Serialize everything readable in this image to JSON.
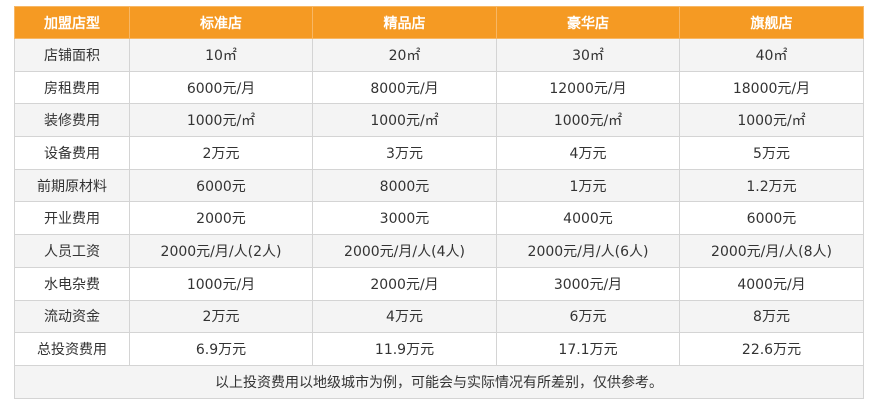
{
  "table": {
    "headers": [
      "加盟店型",
      "标准店",
      "精品店",
      "豪华店",
      "旗舰店"
    ],
    "rows": [
      [
        "店铺面积",
        "10㎡",
        "20㎡",
        "30㎡",
        "40㎡"
      ],
      [
        "房租费用",
        "6000元/月",
        "8000元/月",
        "12000元/月",
        "18000元/月"
      ],
      [
        "装修费用",
        "1000元/㎡",
        "1000元/㎡",
        "1000元/㎡",
        "1000元/㎡"
      ],
      [
        "设备费用",
        "2万元",
        "3万元",
        "4万元",
        "5万元"
      ],
      [
        "前期原材料",
        "6000元",
        "8000元",
        "1万元",
        "1.2万元"
      ],
      [
        "开业费用",
        "2000元",
        "3000元",
        "4000元",
        "6000元"
      ],
      [
        "人员工资",
        "2000元/月/人(2人)",
        "2000元/月/人(4人)",
        "2000元/月/人(6人)",
        "2000元/月/人(8人)"
      ],
      [
        "水电杂费",
        "1000元/月",
        "2000元/月",
        "3000元/月",
        "4000元/月"
      ],
      [
        "流动资金",
        "2万元",
        "4万元",
        "6万元",
        "8万元"
      ],
      [
        "总投资费用",
        "6.9万元",
        "11.9万元",
        "17.1万元",
        "22.6万元"
      ]
    ],
    "note": "以上投资费用以地级城市为例，可能会与实际情况有所差别，仅供参考。"
  },
  "colors": {
    "header_bg": "#f59a23",
    "header_text": "#ffffff",
    "stripe_bg": "#f4f4f4",
    "border": "#d4d4d4"
  }
}
